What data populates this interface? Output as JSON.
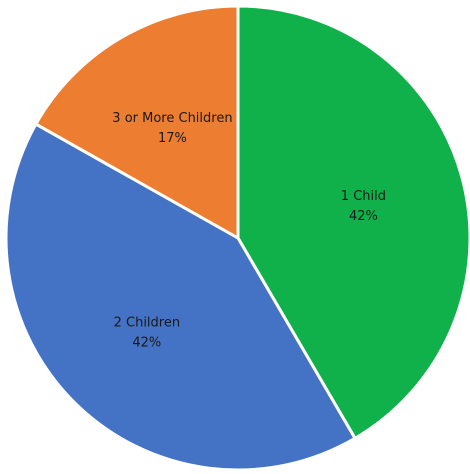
{
  "chart_data": {
    "type": "pie",
    "title": "",
    "start_angle_deg": 0,
    "direction": "clockwise",
    "slices": [
      {
        "label": "1 Child",
        "value": 42,
        "percent_label": "42%",
        "color": "#10b14a"
      },
      {
        "label": "2 Children",
        "value": 42,
        "percent_label": "42%",
        "color": "#4472c4"
      },
      {
        "label": "3 or More Children",
        "value": 17,
        "percent_label": "17%",
        "color": "#ed7d31"
      }
    ],
    "data_labels": "inside",
    "legend": "none"
  }
}
